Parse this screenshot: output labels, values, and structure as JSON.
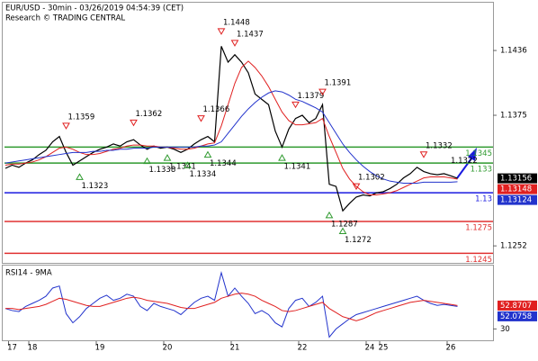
{
  "chart_data": [
    {
      "type": "line",
      "title": "EUR/USD - 30min - 03/26/2019 04:54:39 (CET)",
      "subtitle": "Research © TRADING CENTRAL",
      "ylim": [
        1.1236,
        1.1481
      ],
      "yticks": [
        1.1436,
        1.1375,
        1.1252
      ],
      "series": [
        {
          "color": "#000000",
          "values": [
            1.1325,
            1.1328,
            1.1326,
            1.133,
            1.1333,
            1.1338,
            1.1342,
            1.135,
            1.1355,
            1.134,
            1.1328,
            1.1332,
            1.1336,
            1.134,
            1.1343,
            1.1345,
            1.1348,
            1.1346,
            1.135,
            1.1352,
            1.1347,
            1.1343,
            1.1346,
            1.1344,
            1.1345,
            1.1343,
            1.134,
            1.1343,
            1.1348,
            1.1352,
            1.1355,
            1.135,
            1.144,
            1.1425,
            1.1432,
            1.1425,
            1.1415,
            1.1395,
            1.139,
            1.1385,
            1.136,
            1.1345,
            1.1362,
            1.1372,
            1.1375,
            1.1368,
            1.1372,
            1.1385,
            1.131,
            1.1308,
            1.1285,
            1.1292,
            1.1298,
            1.13,
            1.1299,
            1.1302,
            1.1303,
            1.1306,
            1.131,
            1.1316,
            1.132,
            1.1326,
            1.1322,
            1.132,
            1.1319,
            1.132,
            1.1318,
            1.13156
          ]
        },
        {
          "color": "#e02020",
          "values": [
            1.1328,
            1.1329,
            1.1329,
            1.133,
            1.1331,
            1.1333,
            1.1336,
            1.134,
            1.1344,
            1.1345,
            1.1343,
            1.134,
            1.1338,
            1.1338,
            1.1339,
            1.1341,
            1.1343,
            1.1344,
            1.1346,
            1.1347,
            1.1347,
            1.1346,
            1.1346,
            1.1345,
            1.1345,
            1.1344,
            1.1343,
            1.1343,
            1.1344,
            1.1346,
            1.1348,
            1.1349,
            1.1365,
            1.1385,
            1.1405,
            1.142,
            1.1426,
            1.142,
            1.1412,
            1.1402,
            1.139,
            1.1378,
            1.137,
            1.1366,
            1.1366,
            1.1367,
            1.1368,
            1.1372,
            1.1355,
            1.134,
            1.1325,
            1.1315,
            1.1308,
            1.1303,
            1.13,
            1.13,
            1.1301,
            1.1302,
            1.1304,
            1.1307,
            1.131,
            1.1313,
            1.1316,
            1.1317,
            1.1317,
            1.1317,
            1.1316,
            1.13148
          ]
        },
        {
          "color": "#2233cc",
          "values": [
            1.133,
            1.1331,
            1.1332,
            1.1333,
            1.1334,
            1.1335,
            1.1336,
            1.1337,
            1.1338,
            1.1339,
            1.134,
            1.134,
            1.134,
            1.1341,
            1.1341,
            1.1342,
            1.1342,
            1.1343,
            1.1343,
            1.1344,
            1.1344,
            1.1344,
            1.1345,
            1.1345,
            1.1345,
            1.1345,
            1.1345,
            1.1345,
            1.1345,
            1.1346,
            1.1346,
            1.1347,
            1.135,
            1.1358,
            1.1366,
            1.1374,
            1.1381,
            1.1387,
            1.1392,
            1.1396,
            1.1398,
            1.1397,
            1.1394,
            1.139,
            1.1388,
            1.1385,
            1.1382,
            1.1378,
            1.1368,
            1.1358,
            1.1348,
            1.134,
            1.1333,
            1.1327,
            1.1322,
            1.1318,
            1.1315,
            1.1313,
            1.1312,
            1.1311,
            1.1311,
            1.1311,
            1.1312,
            1.1312,
            1.1312,
            1.1312,
            1.1312,
            1.13124
          ]
        }
      ],
      "levels": [
        {
          "value": 1.1345,
          "color": "#2f9a2f"
        },
        {
          "value": 1.133,
          "color": "#2f9a2f"
        },
        {
          "value": 1.1302,
          "label": "1.13",
          "color": "#1a1ae0"
        },
        {
          "value": 1.1275,
          "color": "#e03030"
        },
        {
          "value": 1.1245,
          "color": "#e03030"
        }
      ],
      "annotations": [
        {
          "value": 1.1359,
          "at": 9,
          "kind": "high"
        },
        {
          "value": 1.1323,
          "at": 11,
          "kind": "low"
        },
        {
          "value": 1.1362,
          "at": 19,
          "kind": "high"
        },
        {
          "value": 1.1338,
          "at": 21,
          "kind": "low"
        },
        {
          "value": 1.1341,
          "at": 24,
          "kind": "low"
        },
        {
          "value": 1.1334,
          "at": 27,
          "kind": "low"
        },
        {
          "value": 1.1366,
          "at": 29,
          "kind": "high"
        },
        {
          "value": 1.1344,
          "at": 30,
          "kind": "low"
        },
        {
          "value": 1.1448,
          "at": 32,
          "kind": "high"
        },
        {
          "value": 1.1437,
          "at": 34,
          "kind": "high"
        },
        {
          "value": 1.1341,
          "at": 41,
          "kind": "low"
        },
        {
          "value": 1.1379,
          "at": 43,
          "kind": "high"
        },
        {
          "value": 1.1391,
          "at": 47,
          "kind": "high"
        },
        {
          "value": 1.1287,
          "at": 48,
          "kind": "low"
        },
        {
          "value": 1.1272,
          "at": 50,
          "kind": "low"
        },
        {
          "value": 1.1302,
          "at": 52,
          "kind": "high"
        },
        {
          "value": 1.1332,
          "at": 62,
          "kind": "high"
        },
        {
          "value": 1.1322,
          "at": 66,
          "kind": "note"
        }
      ]
    },
    {
      "type": "line",
      "title": "RSI14 - 9MA",
      "ylim": [
        18,
        92
      ],
      "yticks": [
        30
      ],
      "categories": [
        null,
        "17",
        null,
        null,
        "18",
        null,
        null,
        null,
        null,
        null,
        null,
        null,
        null,
        null,
        "19",
        null,
        null,
        null,
        null,
        null,
        null,
        null,
        null,
        null,
        "20",
        null,
        null,
        null,
        null,
        null,
        null,
        null,
        null,
        null,
        "21",
        null,
        null,
        null,
        null,
        null,
        null,
        null,
        null,
        null,
        "22",
        null,
        null,
        null,
        null,
        null,
        null,
        null,
        null,
        null,
        "24",
        null,
        "25",
        null,
        null,
        null,
        null,
        null,
        null,
        null,
        null,
        null,
        "26",
        null
      ],
      "series": [
        {
          "color": "#2233cc",
          "values": [
            50,
            48,
            47,
            52,
            55,
            58,
            62,
            70,
            72,
            45,
            36,
            42,
            50,
            55,
            60,
            63,
            58,
            60,
            64,
            62,
            52,
            48,
            55,
            52,
            50,
            48,
            44,
            50,
            56,
            60,
            62,
            58,
            85,
            62,
            70,
            62,
            55,
            45,
            48,
            44,
            36,
            32,
            50,
            58,
            60,
            52,
            56,
            62,
            22,
            30,
            35,
            40,
            44,
            46,
            48,
            50,
            52,
            54,
            56,
            58,
            60,
            62,
            58,
            55,
            53,
            54,
            53,
            52.0758
          ]
        },
        {
          "color": "#e02020",
          "values": [
            50,
            50,
            49,
            50,
            51,
            52,
            54,
            57,
            60,
            59,
            57,
            55,
            53,
            52,
            52,
            54,
            56,
            58,
            60,
            61,
            60,
            58,
            57,
            56,
            55,
            53,
            51,
            50,
            50,
            52,
            54,
            56,
            60,
            62,
            64,
            65,
            64,
            62,
            58,
            55,
            52,
            48,
            47,
            48,
            50,
            52,
            54,
            56,
            50,
            46,
            42,
            40,
            38,
            40,
            43,
            46,
            48,
            50,
            52,
            54,
            56,
            57,
            58,
            57,
            56,
            55,
            54,
            52.8707
          ]
        }
      ]
    }
  ]
}
